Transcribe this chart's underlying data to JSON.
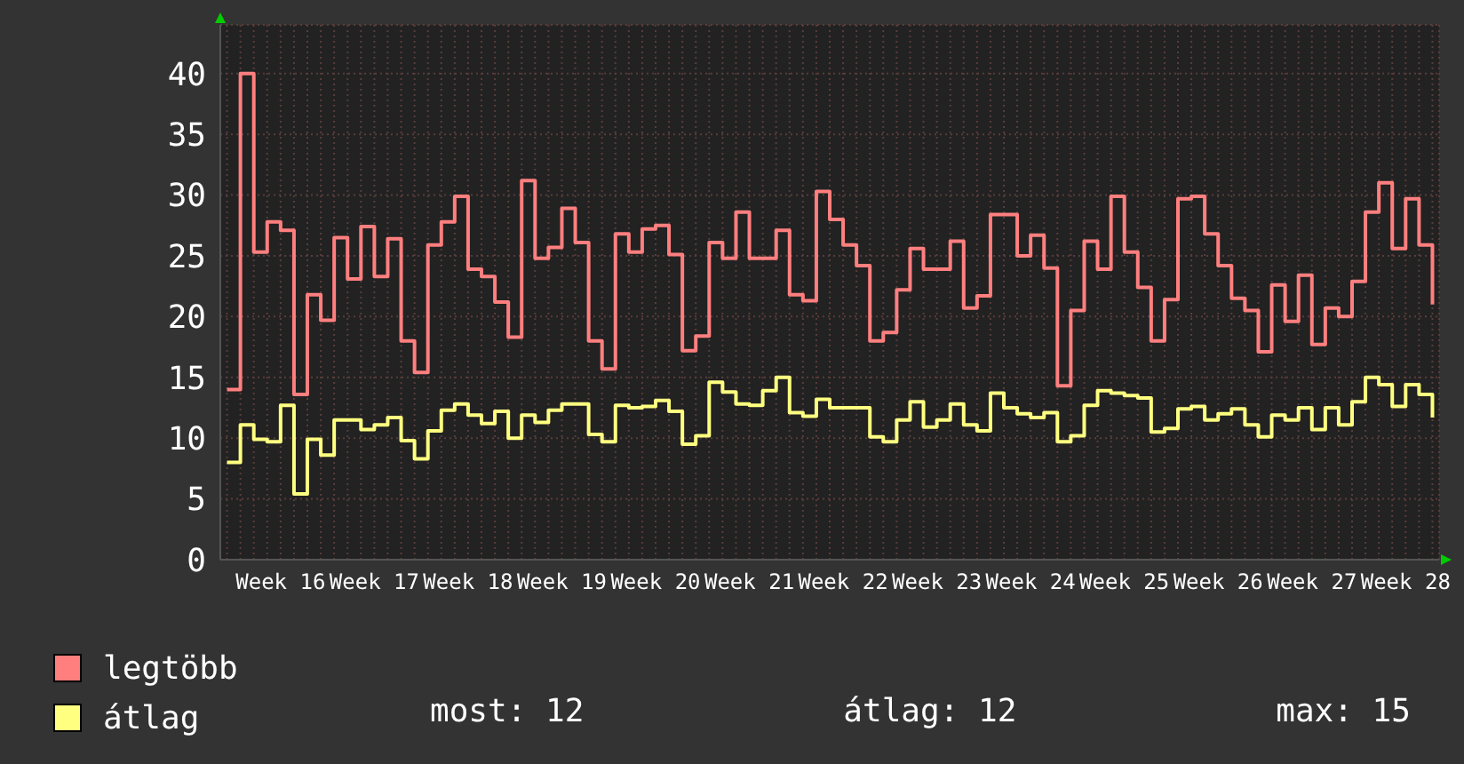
{
  "chart_data": {
    "type": "step",
    "categories": [
      null,
      null,
      null,
      null,
      "Week 16",
      null,
      null,
      null,
      null,
      null,
      null,
      "Week 17",
      null,
      null,
      null,
      null,
      null,
      null,
      "Week 18",
      null,
      null,
      null,
      null,
      null,
      null,
      "Week 19",
      null,
      null,
      null,
      null,
      null,
      null,
      "Week 20",
      null,
      null,
      null,
      null,
      null,
      null,
      "Week 21",
      null,
      null,
      null,
      null,
      null,
      null,
      "Week 22",
      null,
      null,
      null,
      null,
      null,
      null,
      "Week 23",
      null,
      null,
      null,
      null,
      null,
      null,
      "Week 24",
      null,
      null,
      null,
      null,
      null,
      null,
      "Week 25",
      null,
      null,
      null,
      null,
      null,
      null,
      "Week 26",
      null,
      null,
      null,
      null,
      null,
      null,
      "Week 27",
      null,
      null,
      null,
      null,
      null,
      null,
      "Week 28",
      null,
      null
    ],
    "series": [
      {
        "name": "legtöbb",
        "color": "#ff7f7f",
        "values": [
          14,
          40,
          25.3,
          27.8,
          27.1,
          13.6,
          21.8,
          19.7,
          26.5,
          23.1,
          27.4,
          23.3,
          26.4,
          18,
          15.4,
          25.9,
          27.8,
          29.9,
          23.9,
          23.3,
          21.2,
          18.3,
          31.2,
          24.8,
          25.7,
          28.9,
          26.1,
          18,
          15.7,
          26.8,
          25.3,
          27.2,
          27.5,
          25.1,
          17.2,
          18.4,
          26.1,
          24.8,
          28.6,
          24.8,
          24.8,
          27.1,
          21.8,
          21.3,
          30.3,
          28,
          25.9,
          24.2,
          18,
          18.7,
          22.2,
          25.6,
          23.9,
          23.9,
          26.2,
          20.7,
          21.7,
          28.4,
          28.4,
          25,
          26.7,
          24,
          14.3,
          20.5,
          26.2,
          23.9,
          29.9,
          25.3,
          22.4,
          18,
          21.4,
          29.7,
          29.9,
          26.8,
          24.2,
          21.5,
          20.5,
          17.1,
          22.6,
          19.6,
          23.4,
          17.7,
          20.7,
          20,
          22.9,
          28.6,
          31,
          25.6,
          29.7,
          25.9,
          21
        ]
      },
      {
        "name": "átlag",
        "color": "#ffff80",
        "values": [
          8,
          11.1,
          9.9,
          9.7,
          12.7,
          5.4,
          9.9,
          8.6,
          11.5,
          11.5,
          10.7,
          11.1,
          11.7,
          9.8,
          8.3,
          10.6,
          12.3,
          12.8,
          11.9,
          11.2,
          12.2,
          10,
          11.9,
          11.3,
          12.3,
          12.8,
          12.8,
          10.3,
          9.7,
          12.7,
          12.5,
          12.6,
          13.1,
          12.2,
          9.5,
          10.2,
          14.6,
          13.8,
          12.8,
          12.7,
          13.9,
          15,
          12.1,
          11.8,
          13.2,
          12.5,
          12.5,
          12.5,
          10.1,
          9.7,
          11.5,
          13,
          10.9,
          11.5,
          12.8,
          11.1,
          10.6,
          13.7,
          12.5,
          12,
          11.7,
          12.1,
          9.7,
          10.2,
          12.7,
          13.9,
          13.7,
          13.5,
          13.3,
          10.5,
          10.8,
          12.4,
          12.6,
          11.5,
          12,
          12.4,
          11.1,
          10.1,
          11.9,
          11.5,
          12.5,
          10.7,
          12.5,
          11.1,
          13,
          15,
          14.4,
          12.6,
          14.4,
          13.6,
          11.7
        ]
      }
    ],
    "ylim": [
      0,
      44
    ],
    "yticks": [
      0,
      5,
      10,
      15,
      20,
      25,
      30,
      35,
      40
    ],
    "grid": true,
    "legend": "bottom",
    "annotations": [
      "most: 12",
      "átlag: 12",
      "max: 15"
    ]
  }
}
